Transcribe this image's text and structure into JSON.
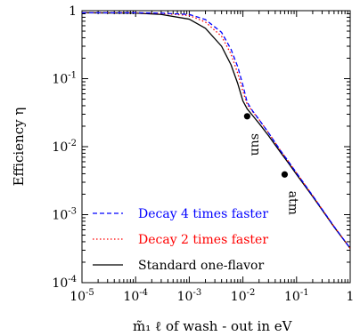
{
  "chart_data": {
    "type": "line",
    "xscale": "log",
    "yscale": "log",
    "xlim": [
      1e-05,
      1
    ],
    "ylim": [
      0.0001,
      1
    ],
    "xlabel": "m̃₁ ℓ of wash - out in eV",
    "ylabel": "Efficiency η",
    "x_ticks": [
      {
        "value": 1e-05,
        "base": "10",
        "exp": "-5"
      },
      {
        "value": 0.0001,
        "base": "10",
        "exp": "-4"
      },
      {
        "value": 0.001,
        "base": "10",
        "exp": "-3"
      },
      {
        "value": 0.01,
        "base": "10",
        "exp": "-2"
      },
      {
        "value": 0.1,
        "base": "10",
        "exp": "-1"
      },
      {
        "value": 1,
        "base": "1",
        "exp": ""
      }
    ],
    "y_ticks": [
      {
        "value": 1,
        "base": "1",
        "exp": ""
      },
      {
        "value": 0.1,
        "base": "10",
        "exp": "-1"
      },
      {
        "value": 0.01,
        "base": "10",
        "exp": "-2"
      },
      {
        "value": 0.001,
        "base": "10",
        "exp": "-3"
      },
      {
        "value": 0.0001,
        "base": "10",
        "exp": "-4"
      }
    ],
    "legend_position": "bottom-left",
    "series": [
      {
        "name": "Decay 4 times faster",
        "color": "#0000ff",
        "dash": "dashed",
        "x": [
          1e-05,
          0.0001,
          0.0003,
          0.001,
          0.002,
          0.004,
          0.006,
          0.008,
          0.01,
          0.012,
          0.015,
          0.02,
          0.03,
          0.05,
          0.07,
          0.1,
          0.2,
          0.5,
          1
        ],
        "y": [
          0.93,
          0.93,
          0.92,
          0.88,
          0.74,
          0.48,
          0.27,
          0.15,
          0.08,
          0.045,
          0.034,
          0.025,
          0.016,
          0.0088,
          0.0061,
          0.0041,
          0.0019,
          0.00067,
          0.00032
        ]
      },
      {
        "name": "Decay 2 times faster",
        "color": "#ff0000",
        "dash": "dotted",
        "x": [
          1e-05,
          0.0001,
          0.0003,
          0.001,
          0.002,
          0.004,
          0.006,
          0.008,
          0.01,
          0.012,
          0.015,
          0.02,
          0.03,
          0.05,
          0.07,
          0.1,
          0.2,
          0.5,
          1
        ],
        "y": [
          0.93,
          0.93,
          0.91,
          0.85,
          0.68,
          0.42,
          0.23,
          0.12,
          0.065,
          0.042,
          0.033,
          0.025,
          0.016,
          0.0088,
          0.0061,
          0.0041,
          0.0019,
          0.00067,
          0.00032
        ]
      },
      {
        "name": "Standard one-flavor",
        "color": "#000000",
        "dash": "solid",
        "x": [
          1e-05,
          0.0001,
          0.0003,
          0.001,
          0.002,
          0.004,
          0.006,
          0.008,
          0.01,
          0.012,
          0.015,
          0.02,
          0.03,
          0.05,
          0.07,
          0.1,
          0.2,
          0.5,
          1
        ],
        "y": [
          0.93,
          0.92,
          0.88,
          0.75,
          0.55,
          0.3,
          0.16,
          0.085,
          0.047,
          0.036,
          0.029,
          0.022,
          0.0145,
          0.0083,
          0.0058,
          0.0039,
          0.00185,
          0.00066,
          0.00032
        ]
      }
    ],
    "annotations": [
      {
        "label": "sun",
        "x": 0.012,
        "y": 0.028
      },
      {
        "label": "atm",
        "x": 0.06,
        "y": 0.0039
      }
    ]
  }
}
